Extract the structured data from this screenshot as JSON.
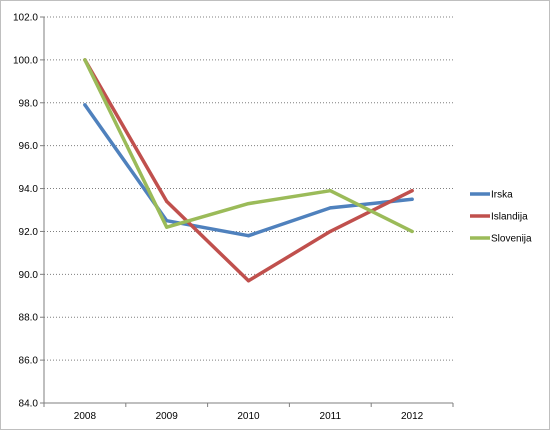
{
  "chart_data": {
    "type": "line",
    "title": "",
    "xlabel": "",
    "ylabel": "",
    "categories": [
      "2008",
      "2009",
      "2010",
      "2011",
      "2012"
    ],
    "ylim": [
      84.0,
      102.0
    ],
    "yticks": [
      "84.0",
      "86.0",
      "88.0",
      "90.0",
      "92.0",
      "94.0",
      "96.0",
      "98.0",
      "100.0",
      "102.0"
    ],
    "grid": "horizontal-dotted",
    "legend_position": "right",
    "series": [
      {
        "name": "Irska",
        "color": "#4f81bd",
        "values": [
          97.9,
          92.5,
          91.8,
          93.1,
          93.5
        ]
      },
      {
        "name": "Islandija",
        "color": "#c0504d",
        "values": [
          100.0,
          93.4,
          89.7,
          92.0,
          93.9
        ]
      },
      {
        "name": "Slovenija",
        "color": "#9bbb59",
        "values": [
          100.0,
          92.2,
          93.3,
          93.9,
          92.0
        ]
      }
    ]
  }
}
